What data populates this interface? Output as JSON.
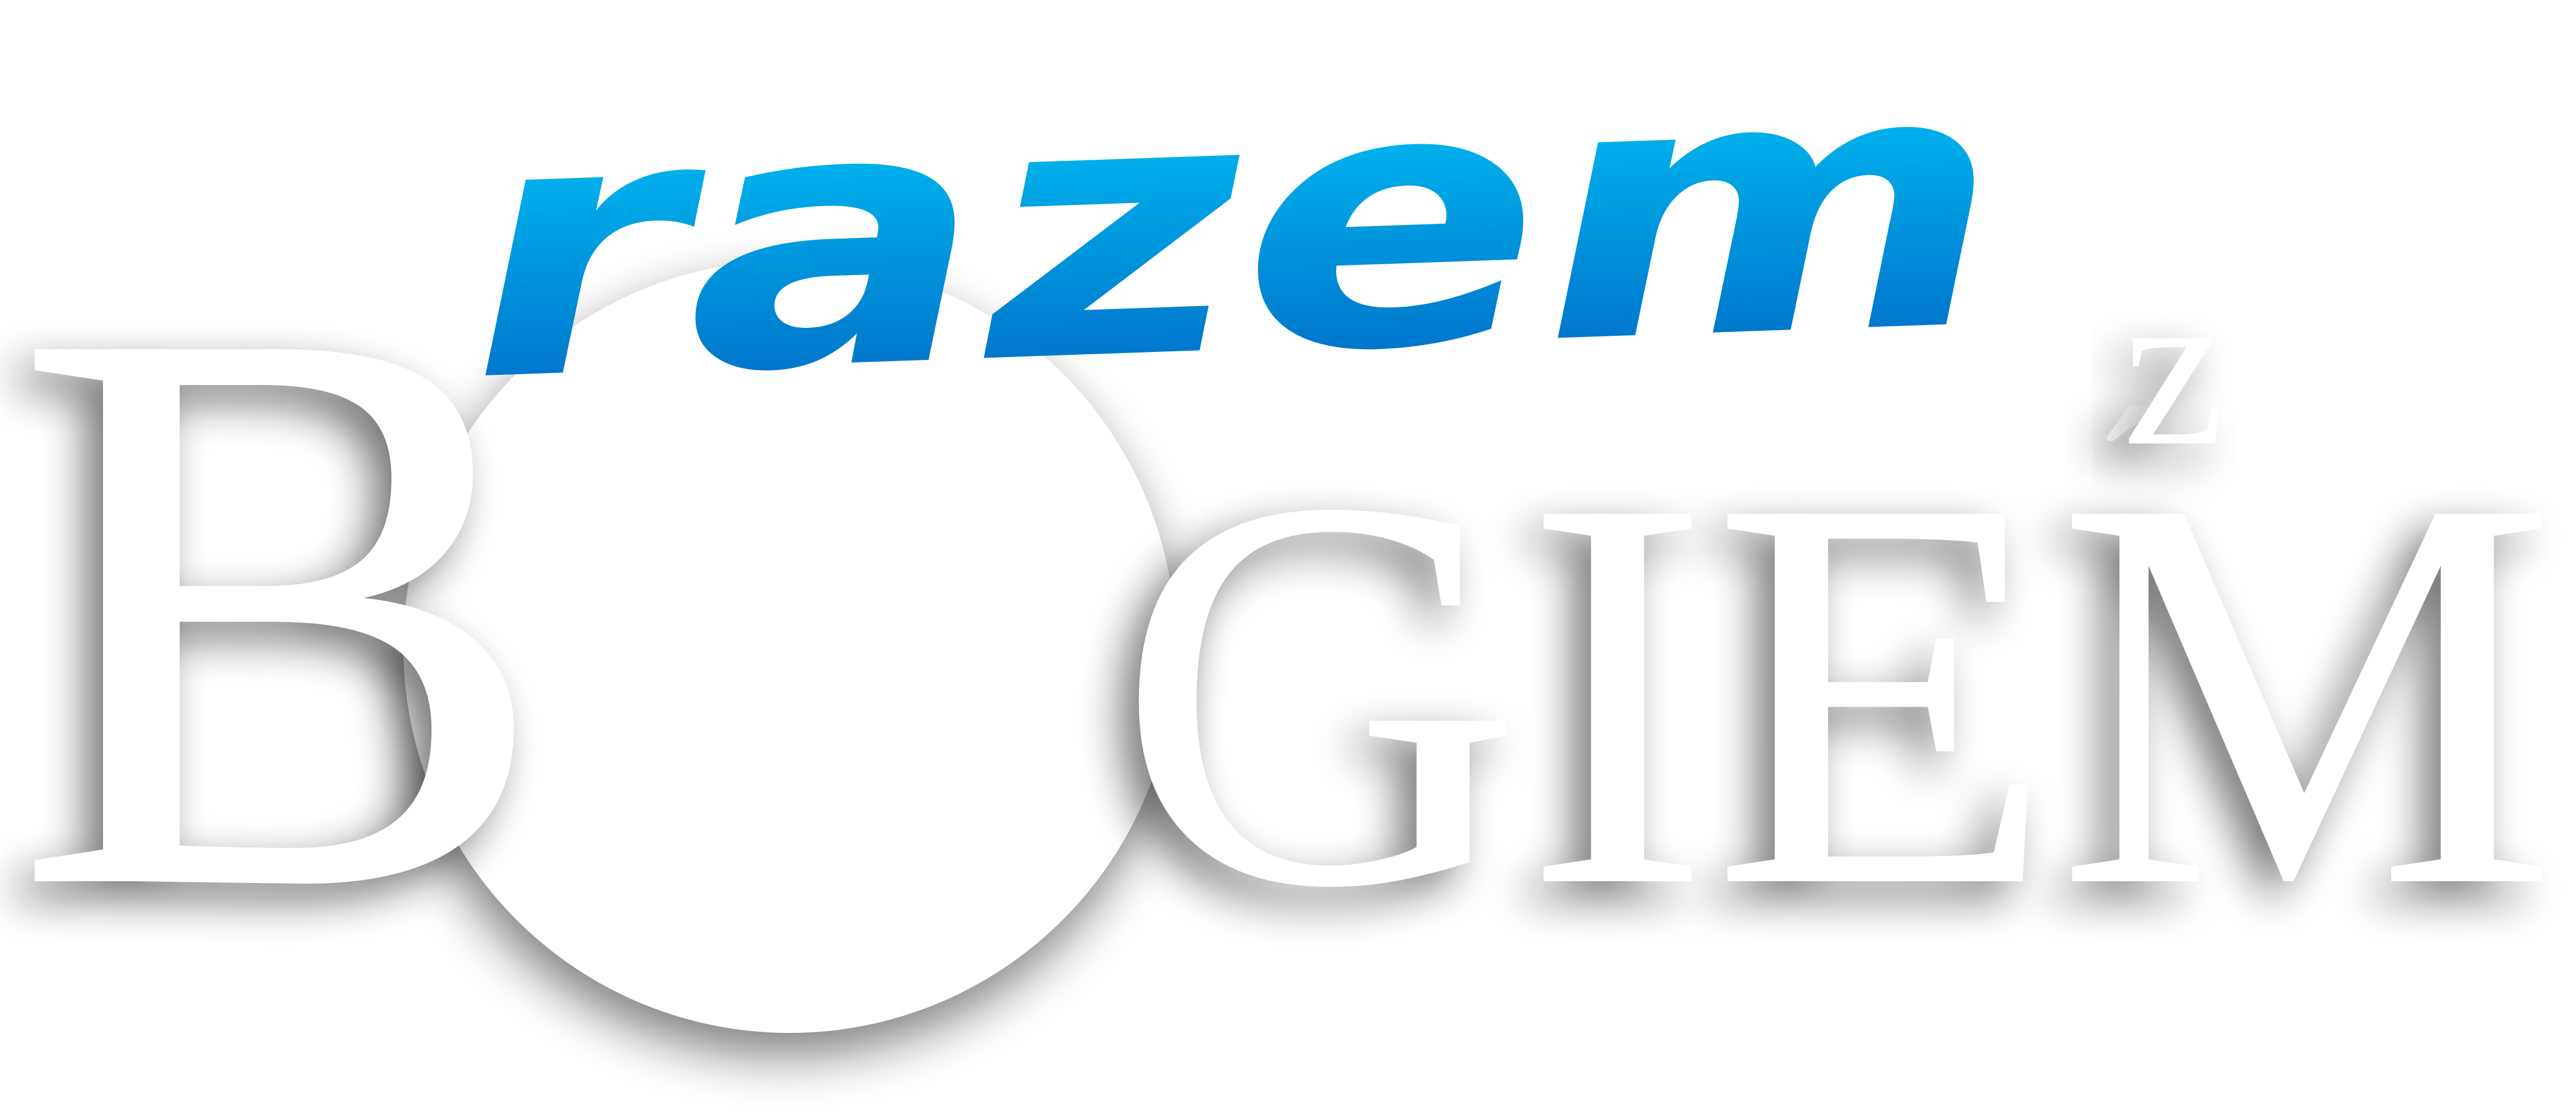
{
  "logo": {
    "script_word": "razem",
    "small_word": "z",
    "main_word_first_letter": "B",
    "main_word_rest": "GIEM",
    "accent_mark": "´"
  },
  "colors": {
    "letter_fill": "#ffffff",
    "shadow": "#7a7a7a",
    "script_gradient_top": "#00d4ff",
    "script_gradient_bottom": "#0060c0",
    "background": "#ffffff"
  },
  "icons": {
    "circle": "circle-o-icon"
  }
}
